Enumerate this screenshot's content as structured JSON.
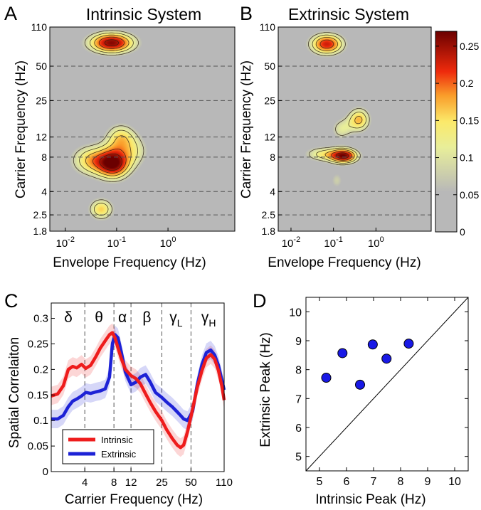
{
  "panels": {
    "A": {
      "letter": "A",
      "title": "Intrinsic System"
    },
    "B": {
      "letter": "B",
      "title": "Extrinsic System"
    },
    "C": {
      "letter": "C"
    },
    "D": {
      "letter": "D"
    }
  },
  "chart_data": [
    {
      "panel": "A",
      "type": "heatmap",
      "title": "Intrinsic System",
      "xlabel": "Envelope Frequency (Hz)",
      "ylabel": "Carrier Frequency (Hz)",
      "x_scale": "log",
      "xlim": [
        0.005,
        20
      ],
      "x_ticks": [
        {
          "value": 0.01,
          "base": "10",
          "exp": "-2"
        },
        {
          "value": 0.1,
          "base": "10",
          "exp": "-1"
        },
        {
          "value": 1,
          "base": "10",
          "exp": "0"
        }
      ],
      "y_scale": "log",
      "ylim": [
        1.8,
        110
      ],
      "y_ticks": [
        {
          "value": 1.8,
          "label": "1.8"
        },
        {
          "value": 2.5,
          "label": "2.5"
        },
        {
          "value": 4,
          "label": "4"
        },
        {
          "value": 8,
          "label": "8"
        },
        {
          "value": 12,
          "label": "12"
        },
        {
          "value": 25,
          "label": "25"
        },
        {
          "value": 50,
          "label": "50"
        },
        {
          "value": 110,
          "label": "110"
        }
      ],
      "dashed_lines_at": [
        2.5,
        4,
        8,
        12,
        25,
        50
      ],
      "blobs": [
        {
          "x": 0.08,
          "y": 80,
          "sx": 0.34,
          "sy": 0.07,
          "amp": 0.26
        },
        {
          "x": 0.09,
          "y": 7,
          "sx": 0.24,
          "sy": 0.1,
          "amp": 0.25
        },
        {
          "x": 0.03,
          "y": 7.5,
          "sx": 0.28,
          "sy": 0.1,
          "amp": 0.15
        },
        {
          "x": 0.12,
          "y": 12,
          "sx": 0.22,
          "sy": 0.09,
          "amp": 0.14
        },
        {
          "x": 0.05,
          "y": 2.8,
          "sx": 0.18,
          "sy": 0.07,
          "amp": 0.16
        },
        {
          "x": 0.25,
          "y": 9,
          "sx": 0.2,
          "sy": 0.1,
          "amp": 0.08
        }
      ]
    },
    {
      "panel": "B",
      "type": "heatmap",
      "title": "Extrinsic System",
      "xlabel": "Envelope Frequency (Hz)",
      "ylabel": "Carrier Frequency (Hz)",
      "x_scale": "log",
      "xlim": [
        0.005,
        20
      ],
      "x_ticks": [
        {
          "value": 0.01,
          "base": "10",
          "exp": "-2"
        },
        {
          "value": 0.1,
          "base": "10",
          "exp": "-1"
        },
        {
          "value": 1,
          "base": "10",
          "exp": "0"
        }
      ],
      "y_scale": "log",
      "ylim": [
        1.8,
        110
      ],
      "y_ticks": [
        {
          "value": 1.8,
          "label": "1.8"
        },
        {
          "value": 2.5,
          "label": "2.5"
        },
        {
          "value": 4,
          "label": "4"
        },
        {
          "value": 8,
          "label": "8"
        },
        {
          "value": 12,
          "label": "12"
        },
        {
          "value": 25,
          "label": "25"
        },
        {
          "value": 50,
          "label": "50"
        },
        {
          "value": 110,
          "label": "110"
        }
      ],
      "dashed_lines_at": [
        2.5,
        4,
        8,
        12,
        25,
        50
      ],
      "blobs": [
        {
          "x": 0.07,
          "y": 78,
          "sx": 0.3,
          "sy": 0.07,
          "amp": 0.23
        },
        {
          "x": 0.18,
          "y": 8.2,
          "sx": 0.25,
          "sy": 0.05,
          "amp": 0.25
        },
        {
          "x": 0.05,
          "y": 8.5,
          "sx": 0.3,
          "sy": 0.05,
          "amp": 0.12
        },
        {
          "x": 0.4,
          "y": 17,
          "sx": 0.2,
          "sy": 0.08,
          "amp": 0.17
        },
        {
          "x": 0.15,
          "y": 14,
          "sx": 0.18,
          "sy": 0.07,
          "amp": 0.1
        },
        {
          "x": 0.12,
          "y": 5,
          "sx": 0.12,
          "sy": 0.06,
          "amp": 0.08
        }
      ],
      "colorbar": {
        "min": 0,
        "max": 0.27,
        "ticks": [
          0,
          0.05,
          0.1,
          0.15,
          0.2,
          0.25
        ],
        "tick_labels": [
          "0",
          "0.05",
          "0.1",
          "0.15",
          "0.2",
          "0.25"
        ]
      }
    },
    {
      "panel": "C",
      "type": "line",
      "xlabel": "Carrier Frequency (Hz)",
      "ylabel": "Spatial Correlaiton",
      "x_scale": "log",
      "xlim": [
        1.8,
        110
      ],
      "x_ticks": [
        {
          "value": 4,
          "label": "4"
        },
        {
          "value": 8,
          "label": "8"
        },
        {
          "value": 12,
          "label": "12"
        },
        {
          "value": 25,
          "label": "25"
        },
        {
          "value": 50,
          "label": "50"
        },
        {
          "value": 110,
          "label": "110"
        }
      ],
      "ylim": [
        0,
        0.33
      ],
      "y_ticks": [
        {
          "value": 0,
          "label": "0"
        },
        {
          "value": 0.05,
          "label": "0.05"
        },
        {
          "value": 0.1,
          "label": "0.1"
        },
        {
          "value": 0.15,
          "label": "0.15"
        },
        {
          "value": 0.2,
          "label": "0.2"
        },
        {
          "value": 0.25,
          "label": "0.25"
        },
        {
          "value": 0.3,
          "label": "0.3"
        }
      ],
      "band_dividers": [
        4,
        8,
        12,
        25,
        50
      ],
      "band_labels": [
        {
          "x": 2.7,
          "symbol": "δ",
          "sub": ""
        },
        {
          "x": 5.6,
          "symbol": "θ",
          "sub": ""
        },
        {
          "x": 9.8,
          "symbol": "α",
          "sub": ""
        },
        {
          "x": 17.5,
          "symbol": "β",
          "sub": ""
        },
        {
          "x": 35,
          "symbol": "γ",
          "sub": "L"
        },
        {
          "x": 76,
          "symbol": "γ",
          "sub": "H"
        }
      ],
      "series": [
        {
          "name": "Intrinsic",
          "color": "#ee1c1c",
          "x": [
            1.8,
            2.1,
            2.4,
            2.7,
            3.0,
            3.3,
            3.7,
            4.1,
            4.6,
            5.2,
            5.8,
            6.5,
            7.2,
            7.7,
            8.2,
            8.8,
            9.5,
            10.5,
            12,
            13.5,
            15,
            17,
            19,
            21.5,
            25,
            28,
            32,
            36,
            39,
            42,
            46,
            52,
            58,
            65,
            72,
            80,
            88,
            96,
            104,
            110
          ],
          "y": [
            0.148,
            0.152,
            0.168,
            0.2,
            0.206,
            0.203,
            0.21,
            0.202,
            0.208,
            0.225,
            0.242,
            0.256,
            0.268,
            0.272,
            0.262,
            0.242,
            0.222,
            0.2,
            0.188,
            0.182,
            0.172,
            0.152,
            0.135,
            0.118,
            0.1,
            0.082,
            0.065,
            0.052,
            0.047,
            0.052,
            0.078,
            0.122,
            0.165,
            0.198,
            0.222,
            0.229,
            0.22,
            0.198,
            0.168,
            0.14
          ],
          "band": 0.018
        },
        {
          "name": "Extrinsic",
          "color": "#1d22d6",
          "x": [
            1.8,
            2.1,
            2.4,
            2.7,
            3.0,
            3.3,
            3.7,
            4.1,
            4.6,
            5.2,
            5.8,
            6.5,
            7.2,
            7.7,
            8.2,
            8.8,
            9.5,
            10.5,
            12,
            13.5,
            15,
            17,
            19,
            21.5,
            25,
            28,
            32,
            36,
            39,
            42,
            46,
            52,
            58,
            65,
            72,
            80,
            88,
            96,
            104,
            110
          ],
          "y": [
            0.103,
            0.103,
            0.11,
            0.127,
            0.138,
            0.142,
            0.148,
            0.155,
            0.153,
            0.156,
            0.158,
            0.162,
            0.185,
            0.25,
            0.268,
            0.262,
            0.235,
            0.195,
            0.17,
            0.175,
            0.185,
            0.19,
            0.175,
            0.155,
            0.145,
            0.136,
            0.127,
            0.117,
            0.11,
            0.103,
            0.1,
            0.118,
            0.17,
            0.21,
            0.233,
            0.238,
            0.228,
            0.208,
            0.18,
            0.16
          ],
          "band": 0.018
        }
      ],
      "legend": {
        "position": "bottom-left",
        "entries": [
          "Intrinsic",
          "Extrinsic"
        ]
      }
    },
    {
      "panel": "D",
      "type": "scatter",
      "xlabel": "Intrinsic Peak (Hz)",
      "ylabel": "Extrinsic Peak (Hz)",
      "xlim": [
        4.5,
        10.5
      ],
      "ylim": [
        4.5,
        10.5
      ],
      "x_ticks": [
        5,
        6,
        7,
        8,
        9,
        10
      ],
      "y_ticks": [
        5,
        6,
        7,
        8,
        9,
        10
      ],
      "identity_line": true,
      "point_color": "#1919e6",
      "points": [
        [
          5.25,
          7.72
        ],
        [
          5.85,
          8.57
        ],
        [
          6.5,
          7.48
        ],
        [
          6.97,
          8.87
        ],
        [
          7.48,
          8.38
        ],
        [
          8.3,
          8.9
        ]
      ]
    }
  ]
}
